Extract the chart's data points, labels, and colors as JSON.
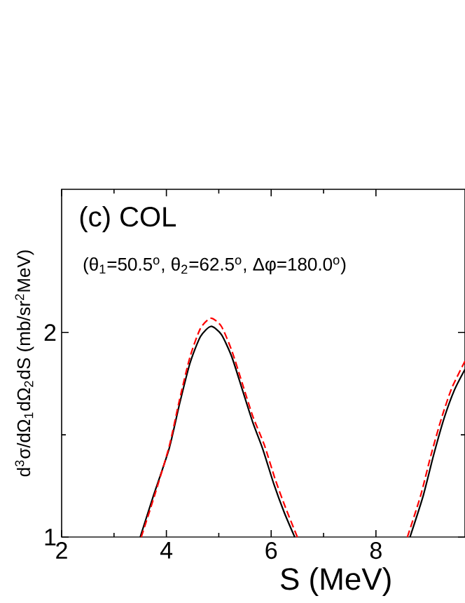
{
  "chart_data": {
    "type": "line",
    "title": "(c) COL",
    "annotations": [
      "(θ$_{1}$=50.5$^{o}$, θ$_{2}$=62.5$^{o}$, Δφ=180.0$^{o}$)"
    ],
    "xlabel": "S (MeV)",
    "ylabel": "d$^{3}$σ/dΩ$_{1}$dΩ$_{2}$dS  (mb/sr$^{2}$MeV)",
    "xlim": [
      2,
      9.7
    ],
    "ylim": [
      1,
      2.7
    ],
    "xticks": [
      2,
      4,
      6,
      8
    ],
    "yticks": [
      1,
      2
    ],
    "grid": false,
    "series": [
      {
        "color": "#000000",
        "line_style": "solid",
        "x": [
          3.5,
          3.75,
          4.05,
          4.25,
          4.45,
          4.65,
          4.85,
          5.05,
          5.25,
          5.45,
          5.65,
          5.84,
          6.05,
          6.25,
          6.45,
          null,
          8.65,
          8.9,
          9.1,
          9.3,
          9.5,
          9.7
        ],
        "values": [
          1.0,
          1.2,
          1.43,
          1.65,
          1.85,
          1.98,
          2.03,
          1.99,
          1.88,
          1.72,
          1.56,
          1.43,
          1.26,
          1.12,
          1.0,
          null,
          1.0,
          1.2,
          1.4,
          1.58,
          1.72,
          1.82
        ]
      },
      {
        "color": "#ff0000",
        "line_style": "dashed",
        "x": [
          3.52,
          3.77,
          4.05,
          4.25,
          4.45,
          4.65,
          4.85,
          5.05,
          5.25,
          5.45,
          5.65,
          5.87,
          6.08,
          6.28,
          6.5,
          null,
          8.6,
          8.85,
          9.05,
          9.25,
          9.45,
          9.7
        ],
        "values": [
          1.0,
          1.2,
          1.44,
          1.67,
          1.88,
          2.02,
          2.07,
          2.03,
          1.91,
          1.75,
          1.59,
          1.45,
          1.28,
          1.14,
          1.0,
          null,
          1.0,
          1.2,
          1.4,
          1.58,
          1.73,
          1.86
        ]
      }
    ]
  }
}
